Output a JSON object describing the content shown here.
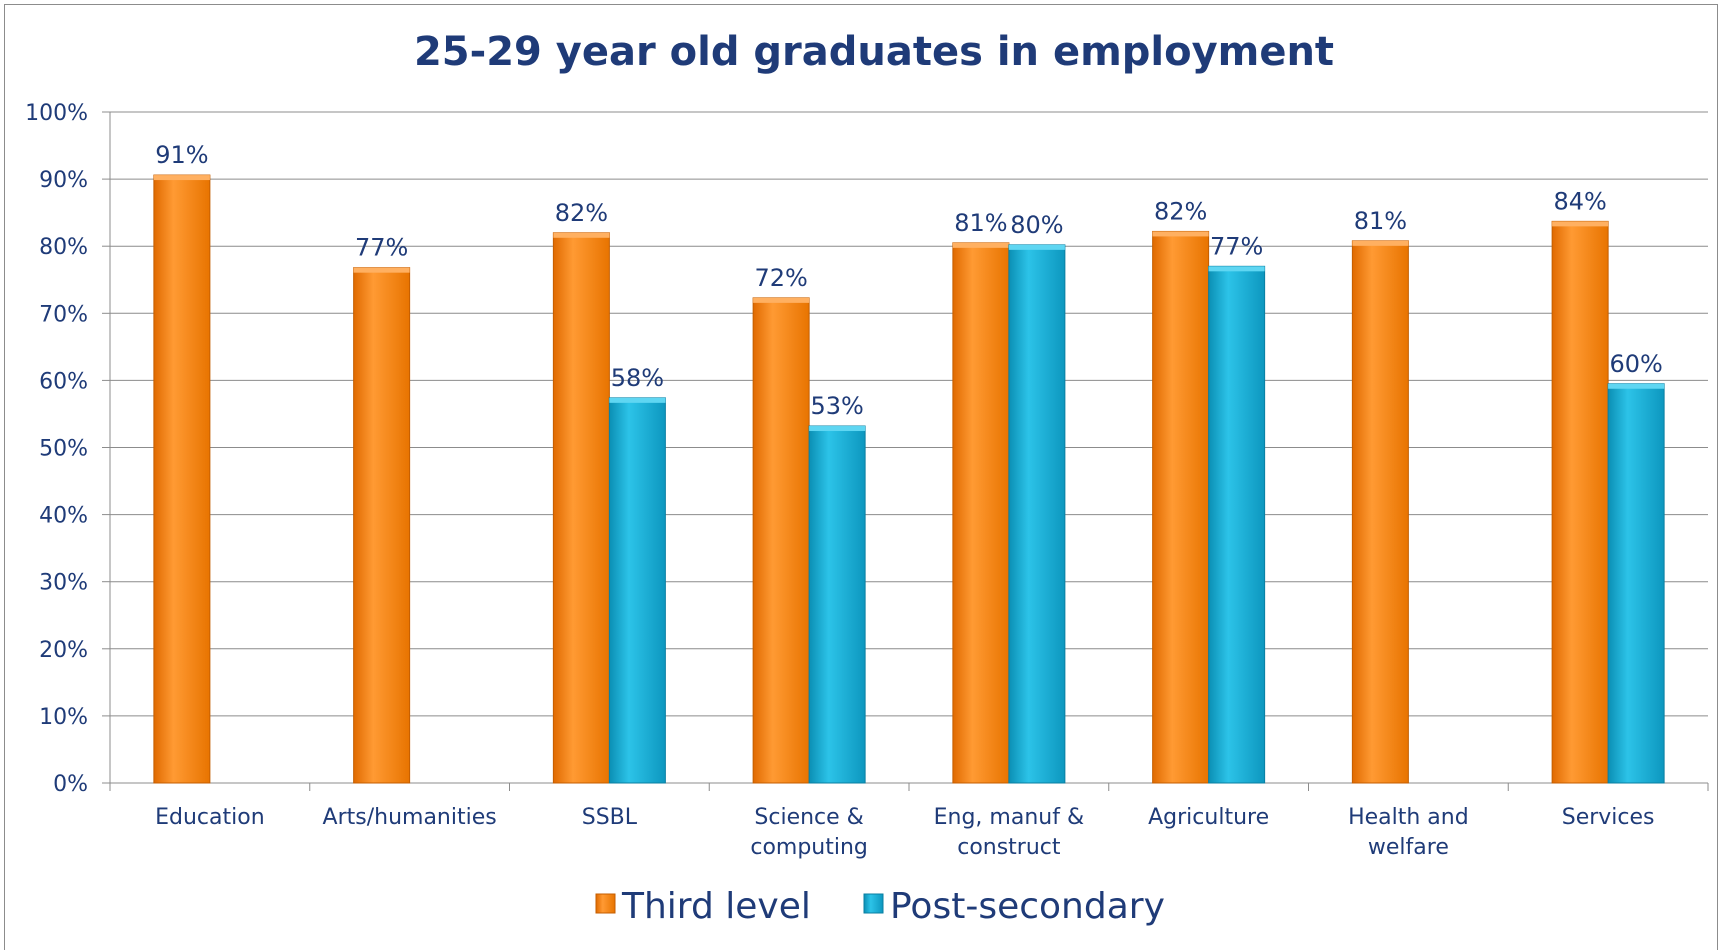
{
  "chart_data": {
    "type": "bar",
    "title": "25-29 year old graduates in employment",
    "categories": [
      [
        "Education"
      ],
      [
        "Arts/humanities"
      ],
      [
        "SSBL"
      ],
      [
        "Science &",
        "computing"
      ],
      [
        "Eng, manuf &",
        "construct"
      ],
      [
        "Agriculture"
      ],
      [
        "Health and",
        "welfare"
      ],
      [
        "Services"
      ]
    ],
    "series": [
      {
        "name": "Third level",
        "color": "#f7861c",
        "values": [
          91,
          77,
          82,
          72,
          81,
          82,
          81,
          84
        ],
        "heights": [
          90.6,
          76.8,
          82.0,
          72.3,
          80.5,
          82.2,
          80.8,
          83.7
        ]
      },
      {
        "name": "Post-secondary",
        "color": "#17a9cf",
        "values": [
          null,
          null,
          58,
          53,
          80,
          77,
          null,
          60
        ],
        "heights": [
          null,
          null,
          57.4,
          53.2,
          80.2,
          77.0,
          null,
          59.5
        ]
      }
    ],
    "yticks": [
      "0%",
      "10%",
      "20%",
      "30%",
      "40%",
      "50%",
      "60%",
      "70%",
      "80%",
      "90%",
      "100%"
    ],
    "ylim": [
      0,
      100
    ],
    "value_suffix": "%",
    "grid": true,
    "legend_position": "bottom"
  }
}
